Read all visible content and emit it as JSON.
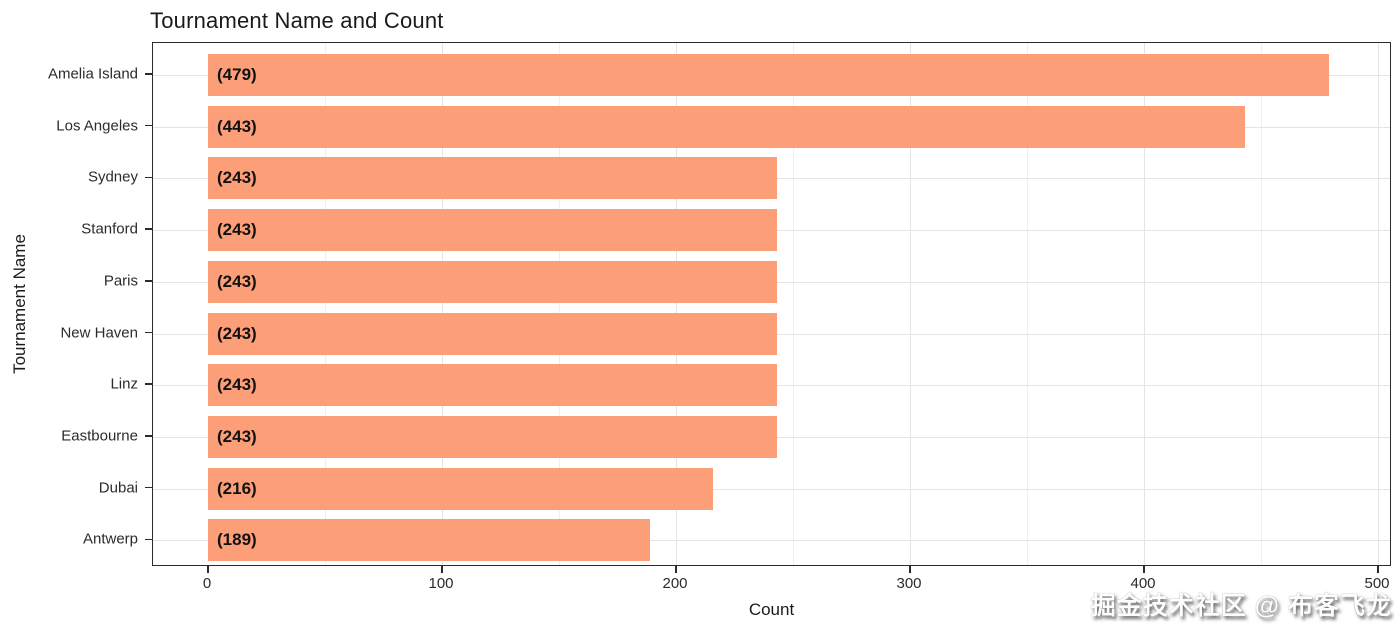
{
  "chart_data": {
    "type": "bar",
    "orientation": "horizontal",
    "title": "Tournament Name and Count",
    "xlabel": "Count",
    "ylabel": "Tournament Name",
    "categories": [
      "Amelia Island",
      "Los Angeles",
      "Sydney",
      "Stanford",
      "Paris",
      "New Haven",
      "Linz",
      "Eastbourne",
      "Dubai",
      "Antwerp"
    ],
    "values": [
      479,
      443,
      243,
      243,
      243,
      243,
      243,
      243,
      216,
      189
    ],
    "bar_labels": [
      "(479)",
      "(443)",
      "(243)",
      "(243)",
      "(243)",
      "(243)",
      "(243)",
      "(243)",
      "(216)",
      "(189)"
    ],
    "xlim": [
      0,
      500
    ],
    "xticks": [
      0,
      100,
      200,
      300,
      400,
      500
    ],
    "minor_xticks": [
      50,
      150,
      250,
      350,
      450
    ],
    "grid": true,
    "legend": "none",
    "bar_color": "#FC9E78",
    "major_grid_color": "#e4e4e4",
    "minor_grid_color": "#efefef",
    "axis_color": "#2b2b2b",
    "text_color": "#1a1a1a"
  },
  "watermark": {
    "text": "掘金技术社区 @ 布客飞龙"
  }
}
